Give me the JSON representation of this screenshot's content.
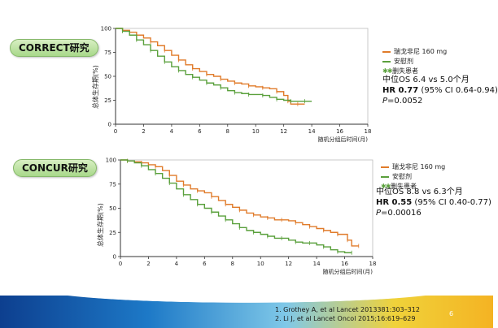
{
  "colors": {
    "regorafenib": "#e07b2a",
    "placebo": "#5aa03c",
    "censored": "#5aa03c"
  },
  "studies": [
    {
      "badge": "CORRECT研究",
      "ylabel": "总体生存期(%)",
      "xlabel": "随机分组后时间(月)",
      "legend": {
        "regorafenib": "瑞戈非尼 160 mg",
        "placebo": "安慰剂",
        "censored": "删失患者"
      },
      "stats": {
        "median": "中位OS 6.4 vs 5.0个月",
        "hr_label": "HR 0.77",
        "hr_ci": " (95% CI 0.64-0.94)",
        "p_label": "P",
        "p_value": "=0.0052"
      }
    },
    {
      "badge": "CONCUR研究",
      "ylabel": "总体生存期(%)",
      "xlabel": "随机分组后时间(月)",
      "legend": {
        "regorafenib": "瑞戈非尼 160 mg",
        "placebo": "安慰剂",
        "censored": "删失患者"
      },
      "stats": {
        "median": "中位OS 8.8 vs 6.3个月",
        "hr_label": "HR 0.55",
        "hr_ci": " (95% CI 0.40-0.77)",
        "p_label": "P",
        "p_value": "=0.00016"
      }
    }
  ],
  "references": [
    "1.   Grothey A, et al Lancet 2013381:303–312",
    "2.   Li J, et al Lancet Oncol 2015;16:619–629"
  ],
  "page_number": "6",
  "chart_data": [
    {
      "type": "line",
      "title": "CORRECT研究",
      "xlabel": "随机分组后时间(月)",
      "ylabel": "总体生存期(%)",
      "xlim": [
        0,
        18
      ],
      "ylim": [
        0,
        100
      ],
      "xticks": [
        0,
        2,
        4,
        6,
        8,
        10,
        12,
        14,
        16,
        18
      ],
      "yticks": [
        0,
        25,
        50,
        75,
        100
      ],
      "series": [
        {
          "name": "瑞戈非尼 160 mg",
          "x": [
            0,
            0.5,
            1,
            1.5,
            2,
            2.5,
            3,
            3.5,
            4,
            4.5,
            5,
            5.5,
            6,
            6.5,
            7,
            7.5,
            8,
            8.5,
            9,
            9.5,
            10,
            10.5,
            11,
            11.5,
            12,
            12.3,
            12.5,
            13,
            13.5
          ],
          "y": [
            100,
            98,
            96,
            93,
            90,
            86,
            82,
            77,
            72,
            67,
            62,
            58,
            55,
            52,
            50,
            47,
            45,
            43,
            42,
            40,
            39,
            38,
            37,
            34,
            30,
            24,
            21,
            21,
            21
          ]
        },
        {
          "name": "安慰剂",
          "x": [
            0,
            0.5,
            1,
            1.5,
            2,
            2.5,
            3,
            3.5,
            4,
            4.5,
            5,
            5.5,
            6,
            6.5,
            7,
            7.5,
            8,
            8.5,
            9,
            9.5,
            10,
            10.5,
            11,
            11.5,
            12,
            12.5,
            13,
            13.5,
            14
          ],
          "y": [
            100,
            97,
            93,
            88,
            83,
            77,
            71,
            65,
            60,
            56,
            52,
            49,
            46,
            43,
            41,
            38,
            35,
            33,
            32,
            31,
            31,
            30,
            28,
            26,
            25,
            24,
            24,
            24,
            24
          ]
        }
      ]
    },
    {
      "type": "line",
      "title": "CONCUR研究",
      "xlabel": "随机分组后时间(月)",
      "ylabel": "总体生存期(%)",
      "xlim": [
        0,
        18
      ],
      "ylim": [
        0,
        100
      ],
      "xticks": [
        0,
        2,
        4,
        6,
        8,
        10,
        12,
        14,
        16,
        18
      ],
      "yticks": [
        0,
        25,
        50,
        75,
        100
      ],
      "series": [
        {
          "name": "瑞戈非尼 160 mg",
          "x": [
            0,
            0.5,
            1,
            1.5,
            2,
            2.5,
            3,
            3.5,
            4,
            4.5,
            5,
            5.5,
            6,
            6.5,
            7,
            7.5,
            8,
            8.5,
            9,
            9.5,
            10,
            10.5,
            11,
            11.5,
            12,
            12.5,
            13,
            13.5,
            14,
            14.5,
            15,
            15.5,
            16,
            16.2,
            16.5,
            17
          ],
          "y": [
            100,
            99,
            98,
            97,
            95,
            93,
            89,
            84,
            78,
            74,
            70,
            68,
            66,
            62,
            58,
            54,
            51,
            48,
            45,
            43,
            41,
            40,
            38,
            38,
            37,
            35,
            33,
            31,
            29,
            27,
            25,
            23,
            23,
            17,
            11,
            11
          ]
        },
        {
          "name": "安慰剂",
          "x": [
            0,
            0.5,
            1,
            1.5,
            2,
            2.5,
            3,
            3.5,
            4,
            4.5,
            5,
            5.5,
            6,
            6.5,
            7,
            7.5,
            8,
            8.5,
            9,
            9.5,
            10,
            10.5,
            11,
            11.5,
            12,
            12.5,
            13,
            13.5,
            14,
            14.5,
            15,
            15.5,
            16,
            16.5
          ],
          "y": [
            100,
            99,
            97,
            94,
            90,
            86,
            81,
            76,
            70,
            64,
            59,
            54,
            50,
            46,
            42,
            38,
            34,
            30,
            27,
            25,
            23,
            21,
            19,
            19,
            17,
            15,
            14,
            14,
            12,
            10,
            7,
            5,
            4,
            4
          ]
        }
      ]
    }
  ]
}
